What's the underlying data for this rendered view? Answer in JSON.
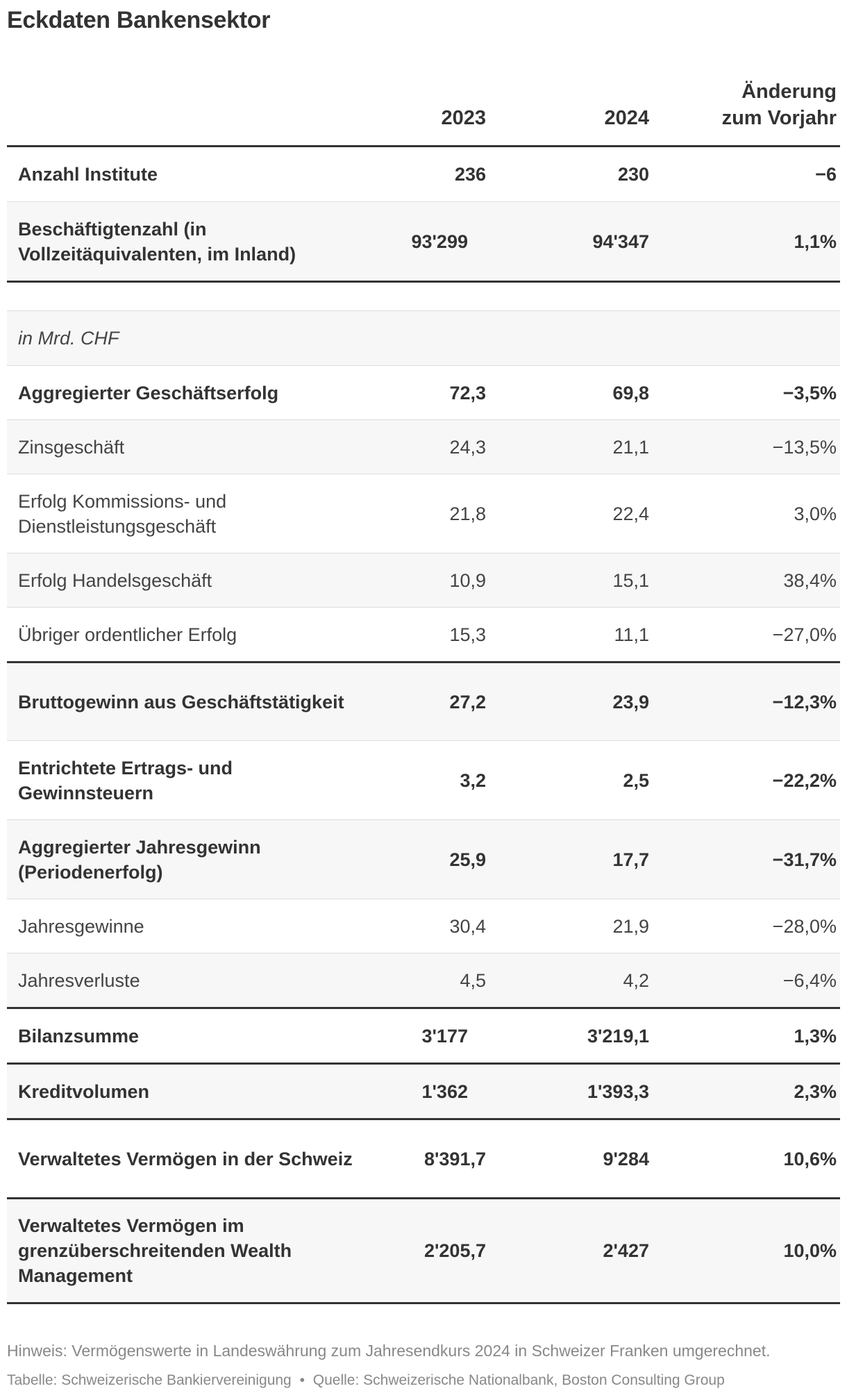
{
  "title": "Eckdaten Bankensektor",
  "header": {
    "col_2023": "2023",
    "col_2024": "2024",
    "col_change_line1": "Änderung",
    "col_change_line2": "zum Vorjahr"
  },
  "rows": [
    {
      "label": "Anzahl Institute",
      "v2023": "236",
      "v2024": "230",
      "change": "−6"
    },
    {
      "label": "Beschäftigtenzahl (in Vollzeitäquivalenten, im Inland)",
      "v2023": "93'299",
      "v2024": "94'347",
      "change": "1,1%"
    },
    {
      "label": "in Mrd. CHF"
    },
    {
      "label": "Aggregierter Geschäftserfolg",
      "v2023": "72,3",
      "v2024": "69,8",
      "change": "−3,5%"
    },
    {
      "label": "Zinsgeschäft",
      "v2023": "24,3",
      "v2024": "21,1",
      "change": "−13,5%"
    },
    {
      "label": "Erfolg Kommissions- und Dienstleistungsgeschäft",
      "v2023": "21,8",
      "v2024": "22,4",
      "change": "3,0%"
    },
    {
      "label": "Erfolg Handelsgeschäft",
      "v2023": "10,9",
      "v2024": "15,1",
      "change": "38,4%"
    },
    {
      "label": "Übriger ordentlicher Erfolg",
      "v2023": "15,3",
      "v2024": "11,1",
      "change": "−27,0%"
    },
    {
      "label": "Bruttogewinn aus Geschäftstätigkeit",
      "v2023": "27,2",
      "v2024": "23,9",
      "change": "−12,3%"
    },
    {
      "label": "Entrichtete Ertrags- und Gewinnsteuern",
      "v2023": "3,2",
      "v2024": "2,5",
      "change": "−22,2%"
    },
    {
      "label": "Aggregierter Jahresgewinn (Periodenerfolg)",
      "v2023": "25,9",
      "v2024": "17,7",
      "change": "−31,7%"
    },
    {
      "label": "Jahresgewinne",
      "v2023": "30,4",
      "v2024": "21,9",
      "change": "−28,0%"
    },
    {
      "label": "Jahresverluste",
      "v2023": "4,5",
      "v2024": "4,2",
      "change": "−6,4%"
    },
    {
      "label": "Bilanzsumme",
      "v2023": "3'177",
      "v2024": "3'219,1",
      "change": "1,3%"
    },
    {
      "label": "Kreditvolumen",
      "v2023": "1'362",
      "v2024": "1'393,3",
      "change": "2,3%"
    },
    {
      "label": "Verwaltetes Vermögen in der Schweiz",
      "v2023": "8'391,7",
      "v2024": "9'284",
      "change": "10,6%"
    },
    {
      "label": "Verwaltetes Vermögen im grenzüberschreitenden Wealth Management",
      "v2023": "2'205,7",
      "v2024": "2'427",
      "change": "10,0%"
    }
  ],
  "footer": {
    "note": "Hinweis: Vermögenswerte in Landeswährung zum Jahresendkurs 2024 in Schweizer Franken umgerechnet.",
    "table_credit": "Tabelle: Schweizerische Bankiervereinigung",
    "bullet": "•",
    "source": "Quelle: Schweizerische Nationalbank, Boston Consulting Group"
  }
}
